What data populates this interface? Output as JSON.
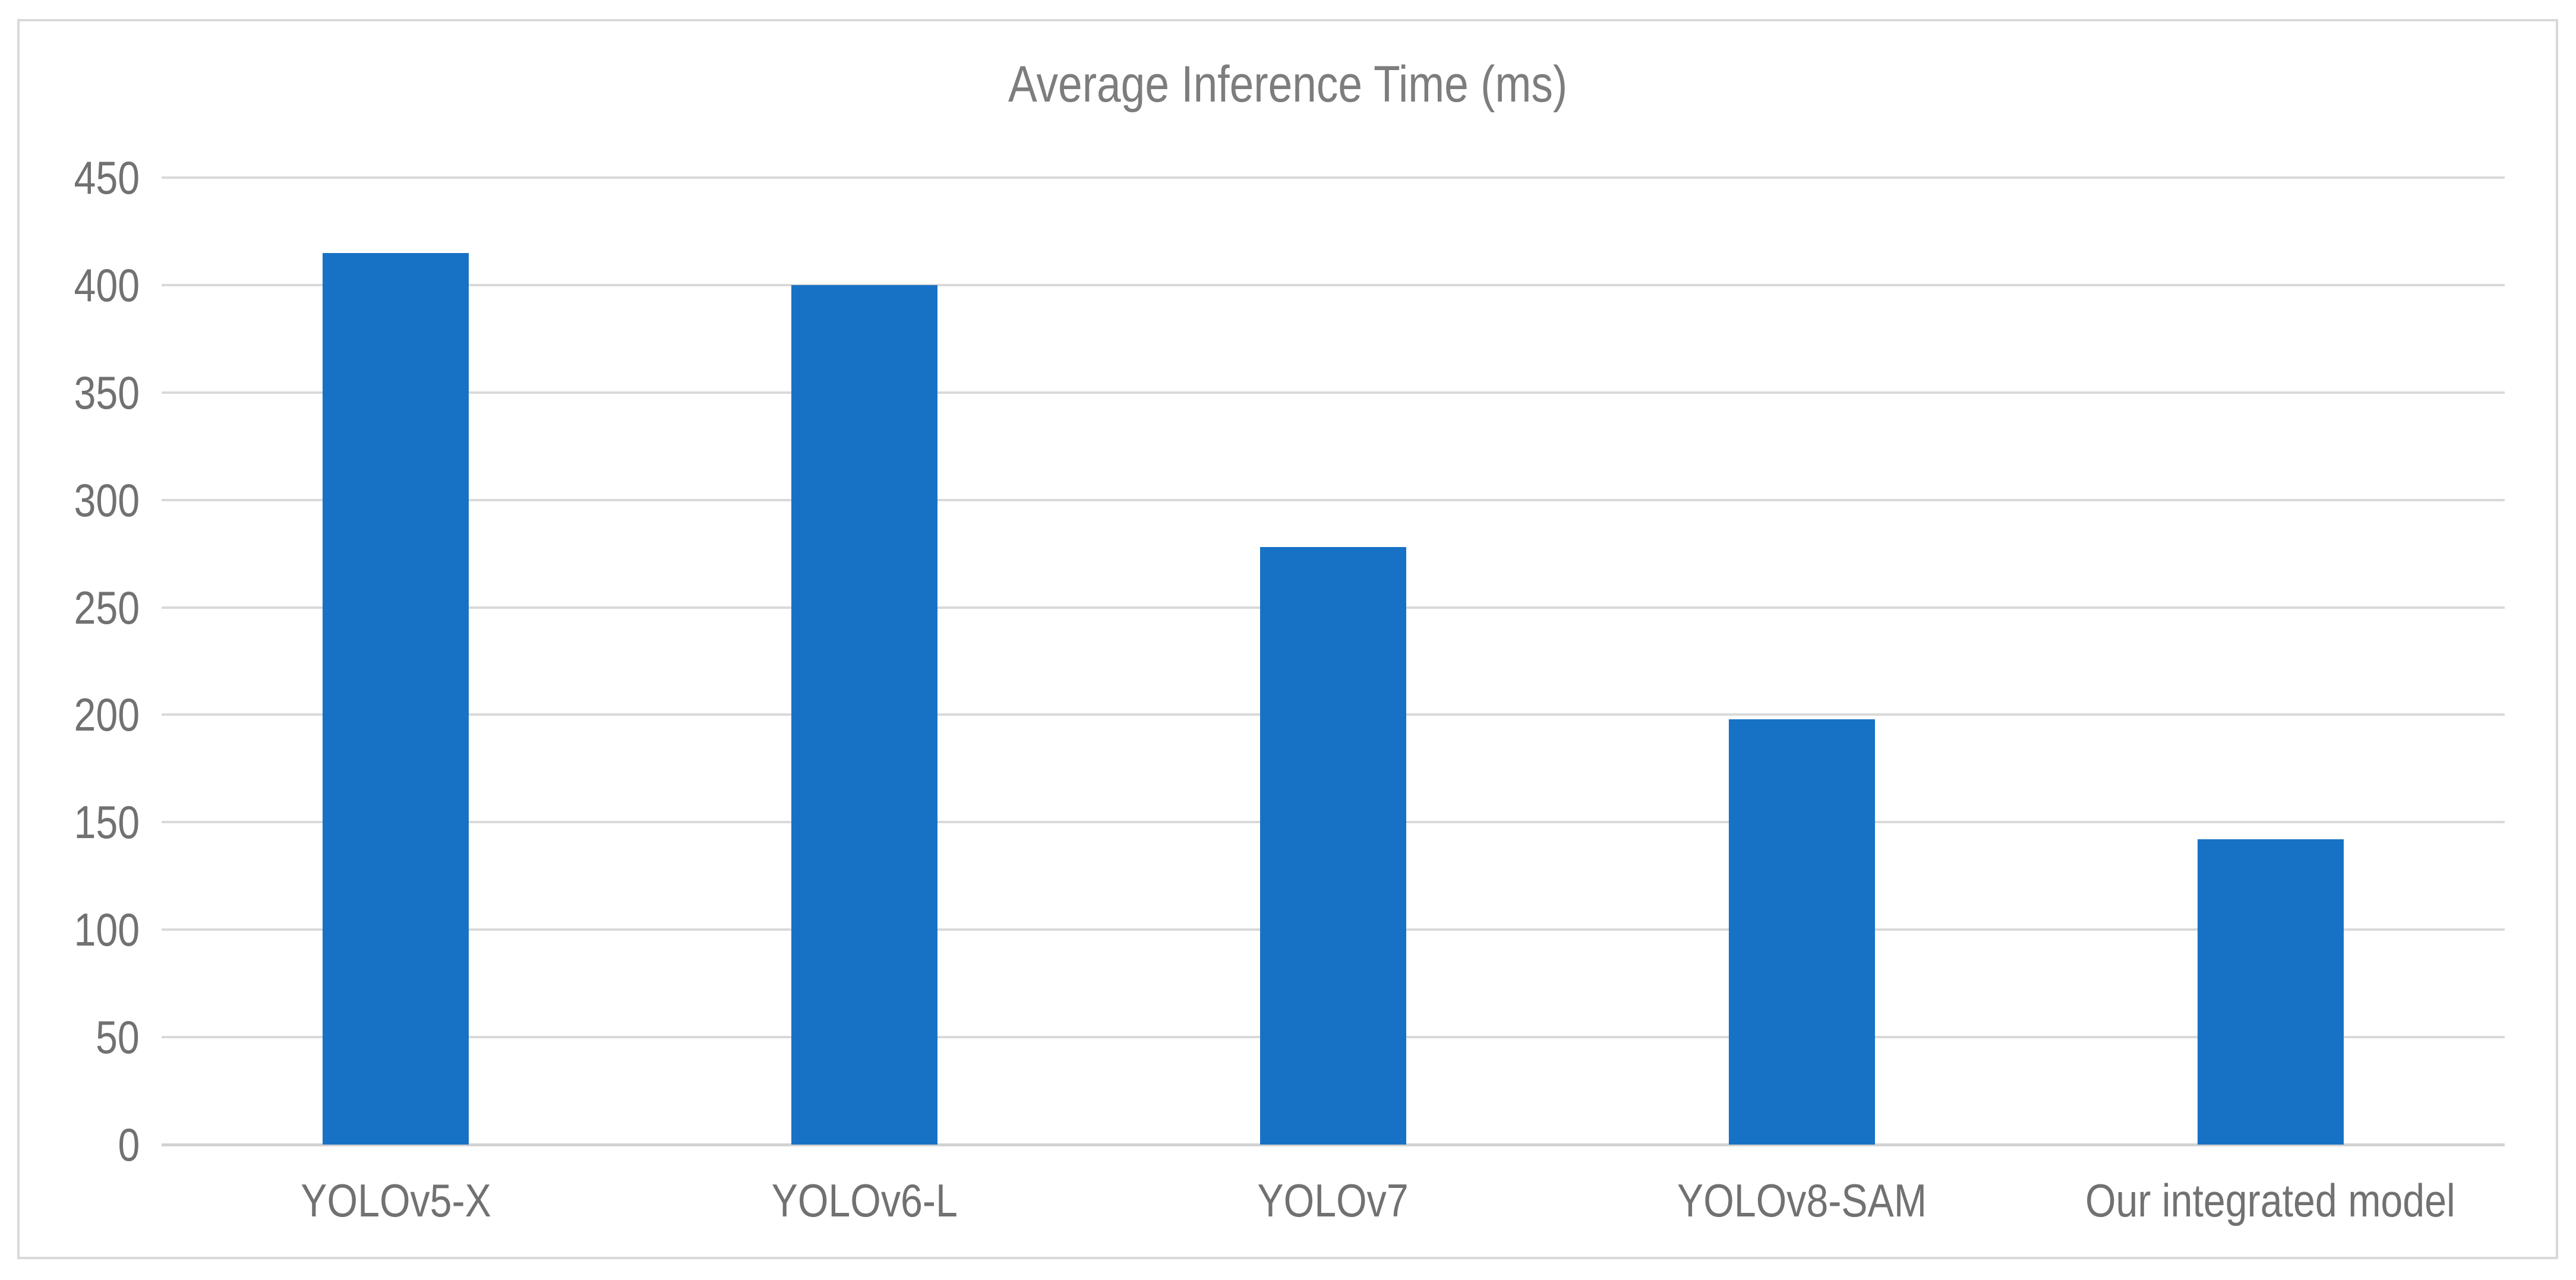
{
  "chart_data": {
    "type": "bar",
    "title": "Average Inference Time (ms)",
    "categories": [
      "YOLOv5-X",
      "YOLOv6-L",
      "YOLOv7",
      "YOLOv8-SAM",
      "Our integrated model"
    ],
    "values": [
      415,
      400,
      278,
      198,
      142
    ],
    "xlabel": "",
    "ylabel": "",
    "ylim": [
      0,
      450
    ],
    "ytick_step": 50,
    "yticks": [
      0,
      50,
      100,
      150,
      200,
      250,
      300,
      350,
      400,
      450
    ],
    "grid": "horizontal",
    "legend": "none",
    "colors": {
      "bar": "#1772c6",
      "gridline": "#d9d9d9",
      "axis_line": "#d2d2d2",
      "tick_label_text": "#717171",
      "title_text": "#7d7d7d",
      "frame_border": "#d9d9d9",
      "background": "#ffffff"
    }
  }
}
